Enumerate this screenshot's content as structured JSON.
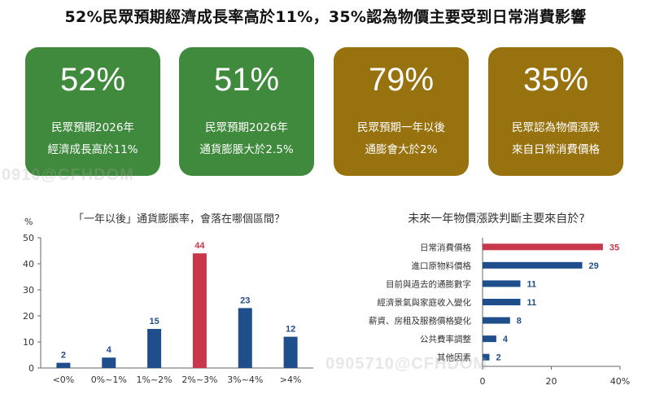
{
  "headline": "52%民眾預期經濟成長率高於11%，35%認為物價主要受到日常消費影響",
  "cards": [
    {
      "value": "52%",
      "line1": "民眾預期2026年",
      "line2": "經濟成長高於11%",
      "color": "#3f8a3c"
    },
    {
      "value": "51%",
      "line1": "民眾預期2026年",
      "line2": "通貨膨脹大於2.5%",
      "color": "#3f8a3c"
    },
    {
      "value": "79%",
      "line1": "民眾預期一年以後",
      "line2": "通膨會大於2%",
      "color": "#98720f"
    },
    {
      "value": "35%",
      "line1": "民眾認為物價漲跌",
      "line2": "來自日常消費價格",
      "color": "#98720f"
    }
  ],
  "watermarks": [
    "0910@CFHDOM",
    "0905710@CFHDOM"
  ],
  "chart_data": [
    {
      "type": "bar",
      "title": "「一年以後」通貨膨脹率，會落在哪個區間？",
      "ylabel": "%",
      "categories": [
        "<0%",
        "0%~1%",
        "1%~2%",
        "2%~3%",
        "3%~4%",
        ">4%"
      ],
      "values": [
        2,
        4,
        15,
        44,
        23,
        12
      ],
      "ylim": [
        0,
        50
      ],
      "yticks": [
        0,
        10,
        20,
        30,
        40,
        50
      ],
      "highlight_index": 3,
      "colors": {
        "default": "#1f4e8c",
        "highlight": "#c8374a"
      }
    },
    {
      "type": "bar",
      "orientation": "horizontal",
      "title": "未來一年物價漲跌判斷主要來自於?",
      "categories": [
        "日常消費價格",
        "進口原物料價格",
        "目前與過去的通膨數字",
        "經濟景氣與家庭收入變化",
        "薪資、房租及服務價格變化",
        "公共費率調整",
        "其他因素"
      ],
      "values": [
        35,
        29,
        11,
        11,
        8,
        4,
        2
      ],
      "xlim": [
        0,
        40
      ],
      "xticks": [
        "0",
        "20",
        "40%"
      ],
      "highlight_index": 0,
      "colors": {
        "default": "#1f4e8c",
        "highlight": "#c8374a"
      }
    }
  ]
}
